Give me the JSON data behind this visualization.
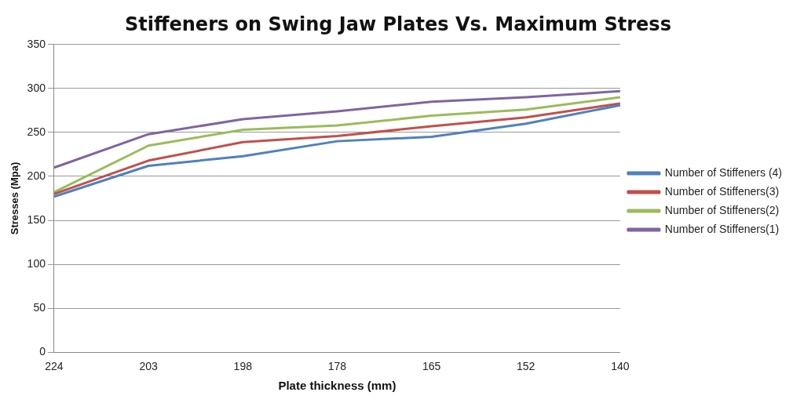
{
  "chart_data": {
    "type": "line",
    "title": "Stiffeners on Swing Jaw Plates Vs. Maximum Stress",
    "xlabel": "Plate thickness (mm)",
    "ylabel": "Stresses (Mpa)",
    "categories": [
      "224",
      "203",
      "198",
      "178",
      "165",
      "152",
      "140"
    ],
    "series": [
      {
        "name": "Number of Stiffeners (4)",
        "color": "#4f81bd",
        "values": [
          177,
          212,
          223,
          240,
          245,
          260,
          281
        ]
      },
      {
        "name": "Number of Stiffeners(3)",
        "color": "#c0504d",
        "values": [
          180,
          218,
          239,
          246,
          257,
          267,
          283
        ]
      },
      {
        "name": "Number of Stiffeners(2)",
        "color": "#9bbb59",
        "values": [
          182,
          235,
          253,
          258,
          269,
          276,
          290
        ]
      },
      {
        "name": "Number of Stiffeners(1)",
        "color": "#8064a2",
        "values": [
          210,
          248,
          265,
          274,
          285,
          290,
          297
        ]
      }
    ],
    "ylim": [
      0,
      350
    ],
    "yticks": [
      0,
      50,
      100,
      150,
      200,
      250,
      300,
      350
    ],
    "grid": "y",
    "legend": "right",
    "marker": "none",
    "line_style": "solid"
  }
}
